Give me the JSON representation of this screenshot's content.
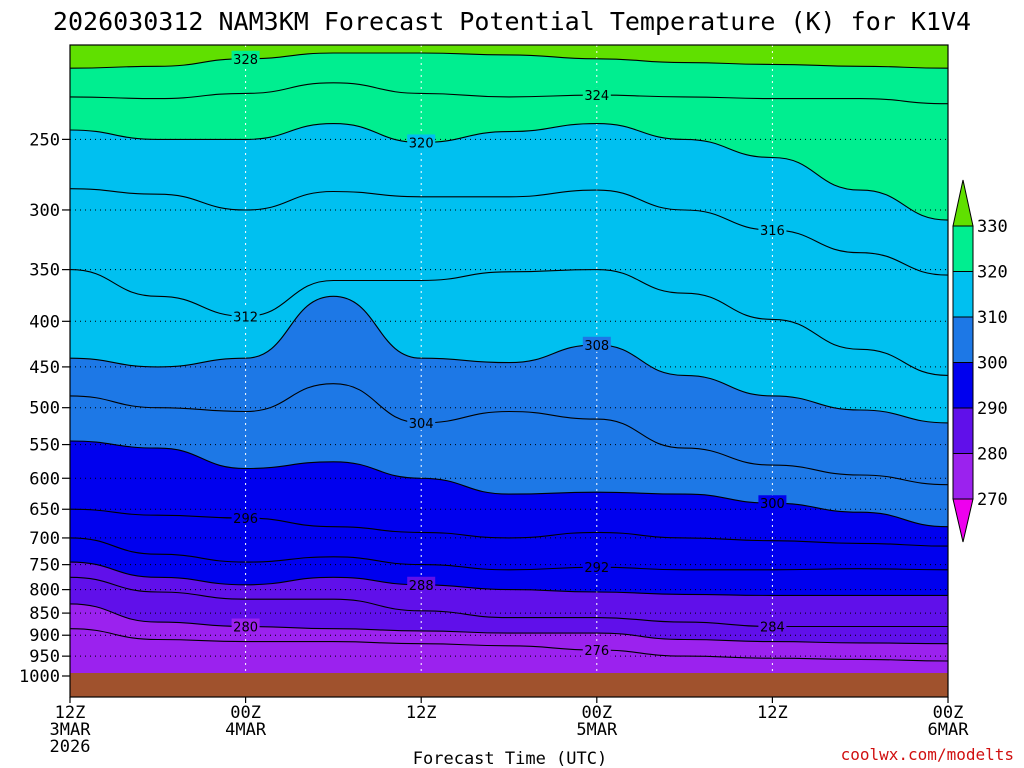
{
  "chart_data": {
    "type": "contour",
    "title": "2026030312 NAM3KM Forecast Potential Temperature (K) for K1V4",
    "xlabel": "Forecast Time (UTC)",
    "ylabel": "",
    "credit": "coolwx.com/modelts",
    "x_ticks": [
      {
        "hours": 0,
        "line1": "12Z",
        "line2": "3MAR",
        "line3": "2026"
      },
      {
        "hours": 12,
        "line1": "00Z",
        "line2": "4MAR",
        "line3": ""
      },
      {
        "hours": 24,
        "line1": "12Z",
        "line2": "",
        "line3": ""
      },
      {
        "hours": 36,
        "line1": "00Z",
        "line2": "5MAR",
        "line3": ""
      },
      {
        "hours": 48,
        "line1": "12Z",
        "line2": "",
        "line3": ""
      },
      {
        "hours": 60,
        "line1": "00Z",
        "line2": "6MAR",
        "line3": ""
      }
    ],
    "x_range_hours": [
      0,
      60
    ],
    "y_ticks": [
      "250",
      "300",
      "350",
      "400",
      "450",
      "500",
      "550",
      "600",
      "650",
      "700",
      "750",
      "800",
      "850",
      "900",
      "950",
      "1000"
    ],
    "y_range_hpa": [
      200,
      1000
    ],
    "colorbar": {
      "labels": [
        "330",
        "320",
        "310",
        "300",
        "290",
        "280",
        "270"
      ],
      "levels": [
        270,
        280,
        290,
        300,
        310,
        320,
        330
      ],
      "colors": [
        "#ee00ee",
        "#9b22ee",
        "#6010ea",
        "#0000ee",
        "#1d78e6",
        "#00c0f0",
        "#00ee90",
        "#60e000"
      ]
    },
    "ground_color": "#a0522d",
    "contour_interval_k": 4,
    "isentropes": [
      {
        "theta": 328,
        "label": "328",
        "pressure_hpa": [
          208,
          207,
          203,
          200,
          200,
          201,
          203,
          205,
          206,
          207,
          208
        ]
      },
      {
        "theta": 324,
        "label": "324",
        "pressure_hpa": [
          224,
          225,
          222,
          216,
          222,
          224,
          223,
          224,
          225,
          225,
          228
        ]
      },
      {
        "theta": 320,
        "label": "320",
        "pressure_hpa": [
          244,
          250,
          250,
          240,
          252,
          245,
          240,
          250,
          262,
          285,
          308
        ]
      },
      {
        "theta": 316,
        "label": "316",
        "pressure_hpa": [
          284,
          288,
          300,
          286,
          290,
          290,
          285,
          300,
          316,
          335,
          355
        ]
      },
      {
        "theta": 312,
        "label": "312",
        "pressure_hpa": [
          350,
          375,
          395,
          360,
          360,
          352,
          350,
          372,
          398,
          430,
          460
        ]
      },
      {
        "theta": 308,
        "label": "308",
        "pressure_hpa": [
          440,
          450,
          440,
          375,
          440,
          445,
          425,
          460,
          485,
          503,
          520
        ]
      },
      {
        "theta": 304,
        "label": "304",
        "pressure_hpa": [
          485,
          500,
          505,
          470,
          520,
          505,
          515,
          555,
          580,
          595,
          610
        ]
      },
      {
        "theta": 300,
        "label": "300",
        "pressure_hpa": [
          545,
          555,
          585,
          575,
          600,
          625,
          622,
          625,
          640,
          655,
          680
        ]
      },
      {
        "theta": 296,
        "label": "296",
        "pressure_hpa": [
          650,
          660,
          665,
          680,
          690,
          700,
          690,
          700,
          705,
          710,
          715
        ]
      },
      {
        "theta": 292,
        "label": "292",
        "pressure_hpa": [
          700,
          730,
          745,
          735,
          750,
          760,
          755,
          760,
          760,
          758,
          760
        ]
      },
      {
        "theta": 288,
        "label": "288",
        "pressure_hpa": [
          745,
          775,
          790,
          775,
          790,
          800,
          805,
          810,
          812,
          812,
          812
        ]
      },
      {
        "theta": 284,
        "label": "284",
        "pressure_hpa": [
          775,
          805,
          820,
          820,
          845,
          860,
          860,
          870,
          880,
          880,
          880
        ]
      },
      {
        "theta": 280,
        "label": "280",
        "pressure_hpa": [
          830,
          870,
          880,
          885,
          890,
          895,
          895,
          910,
          915,
          918,
          920
        ]
      },
      {
        "theta": 276,
        "label": "276",
        "pressure_hpa": [
          885,
          910,
          915,
          915,
          920,
          925,
          935,
          950,
          955,
          958,
          962
        ]
      }
    ]
  }
}
